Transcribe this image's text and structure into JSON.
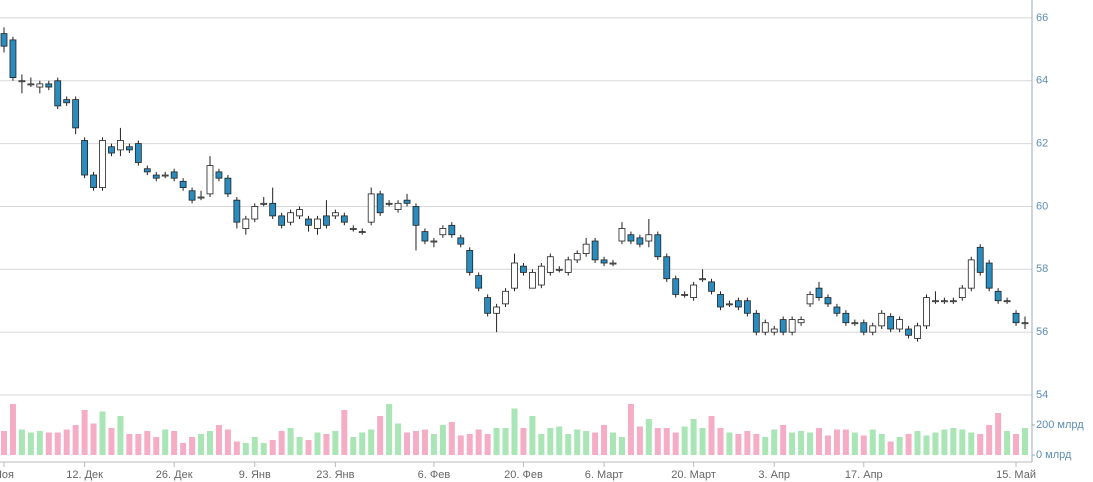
{
  "chart_data": {
    "type": "candlestick",
    "categories": [
      "Ноя",
      null,
      null,
      null,
      null,
      null,
      null,
      null,
      null,
      "12. Дек",
      null,
      null,
      null,
      null,
      null,
      null,
      null,
      null,
      null,
      "26. Дек",
      null,
      null,
      null,
      null,
      null,
      null,
      null,
      null,
      "9. Янв",
      null,
      null,
      null,
      null,
      null,
      null,
      null,
      null,
      "23. Янв",
      null,
      null,
      null,
      null,
      null,
      null,
      null,
      null,
      null,
      null,
      "6. Фев",
      null,
      null,
      null,
      null,
      null,
      null,
      null,
      null,
      null,
      "20. Фев",
      null,
      null,
      null,
      null,
      null,
      null,
      null,
      null,
      "6. Март",
      null,
      null,
      null,
      null,
      null,
      null,
      null,
      null,
      null,
      "20. Март",
      null,
      null,
      null,
      null,
      null,
      null,
      null,
      null,
      "3. Апр",
      null,
      null,
      null,
      null,
      null,
      null,
      null,
      null,
      null,
      "17. Апр",
      null,
      null,
      null,
      null,
      null,
      null,
      null,
      null,
      null,
      null,
      null,
      null,
      null,
      null,
      null,
      null,
      "15. Май",
      null
    ],
    "open": [
      65.5,
      65.3,
      64.0,
      63.9,
      63.8,
      63.9,
      64.0,
      63.4,
      63.4,
      62.1,
      61.0,
      60.6,
      61.9,
      61.8,
      61.9,
      62.0,
      61.2,
      61.0,
      61.0,
      61.1,
      60.8,
      60.5,
      60.3,
      60.4,
      61.1,
      60.9,
      60.2,
      59.3,
      59.6,
      60.1,
      60.1,
      59.7,
      59.5,
      59.7,
      59.6,
      59.3,
      59.7,
      59.7,
      59.7,
      59.3,
      59.2,
      59.5,
      60.4,
      60.1,
      59.9,
      60.2,
      60.0,
      59.2,
      58.9,
      59.1,
      59.4,
      59.0,
      58.6,
      57.8,
      57.1,
      56.6,
      56.9,
      57.4,
      58.1,
      57.4,
      57.5,
      57.9,
      58.0,
      57.9,
      58.3,
      58.5,
      58.9,
      58.3,
      58.2,
      58.9,
      59.1,
      59.0,
      58.9,
      59.1,
      58.4,
      57.7,
      57.2,
      57.1,
      57.7,
      57.6,
      57.2,
      56.9,
      57.0,
      57.0,
      56.6,
      56.0,
      56.0,
      56.4,
      56.0,
      56.3,
      56.9,
      57.4,
      57.1,
      56.8,
      56.6,
      56.3,
      56.3,
      56.0,
      56.2,
      56.5,
      56.1,
      56.1,
      55.8,
      56.2,
      57.0,
      57.0,
      57.0,
      57.1,
      57.4,
      58.7,
      58.2,
      57.3,
      57.0,
      56.6,
      56.3
    ],
    "high": [
      65.7,
      65.4,
      64.2,
      64.1,
      64.0,
      64.0,
      64.1,
      63.5,
      63.5,
      62.2,
      61.1,
      62.2,
      62.0,
      62.5,
      62.0,
      62.1,
      61.3,
      61.1,
      61.1,
      61.2,
      60.9,
      60.6,
      60.5,
      61.6,
      61.2,
      61.0,
      60.3,
      59.7,
      60.1,
      60.3,
      60.6,
      59.8,
      59.9,
      60.0,
      59.7,
      59.7,
      60.2,
      59.9,
      59.8,
      59.4,
      59.3,
      60.6,
      60.5,
      60.2,
      60.2,
      60.4,
      60.1,
      59.3,
      59.0,
      59.4,
      59.5,
      59.1,
      58.7,
      57.9,
      57.2,
      56.9,
      57.4,
      58.5,
      58.2,
      58.0,
      58.2,
      58.5,
      58.1,
      58.4,
      58.6,
      59.0,
      59.0,
      58.4,
      58.3,
      59.5,
      59.2,
      59.1,
      59.6,
      59.2,
      58.5,
      57.8,
      57.3,
      57.6,
      58.0,
      57.7,
      57.3,
      57.0,
      57.1,
      57.1,
      56.7,
      56.4,
      56.2,
      56.5,
      56.5,
      56.5,
      57.3,
      57.6,
      57.2,
      56.9,
      56.7,
      56.4,
      56.4,
      56.3,
      56.7,
      56.6,
      56.5,
      56.2,
      56.3,
      57.2,
      57.3,
      57.1,
      57.1,
      57.5,
      58.4,
      58.8,
      58.3,
      57.4,
      57.1,
      56.7,
      56.5
    ],
    "low": [
      64.9,
      64.0,
      63.6,
      63.8,
      63.6,
      63.7,
      63.1,
      63.2,
      62.3,
      60.9,
      60.5,
      60.5,
      61.6,
      61.6,
      61.7,
      61.3,
      61.0,
      60.8,
      60.9,
      60.8,
      60.5,
      60.1,
      60.2,
      60.3,
      60.8,
      60.3,
      59.3,
      59.1,
      59.5,
      60.0,
      59.6,
      59.3,
      59.4,
      59.6,
      59.2,
      59.1,
      59.3,
      59.6,
      59.4,
      59.2,
      59.1,
      59.4,
      59.7,
      60.0,
      59.8,
      60.0,
      58.6,
      58.8,
      58.7,
      59.0,
      59.0,
      58.7,
      57.8,
      57.3,
      56.5,
      56.0,
      56.8,
      57.3,
      57.8,
      57.4,
      57.4,
      57.8,
      57.9,
      57.8,
      58.2,
      58.4,
      58.2,
      58.1,
      58.1,
      58.8,
      58.8,
      58.7,
      58.7,
      58.3,
      57.6,
      57.1,
      57.1,
      57.0,
      57.6,
      57.2,
      56.7,
      56.8,
      56.7,
      56.5,
      55.9,
      55.9,
      55.9,
      55.9,
      55.9,
      56.2,
      56.8,
      57.0,
      56.8,
      56.5,
      56.2,
      56.2,
      55.9,
      55.9,
      56.1,
      56.0,
      56.0,
      55.8,
      55.7,
      56.1,
      56.9,
      56.9,
      56.9,
      57.0,
      57.3,
      57.8,
      57.3,
      56.9,
      56.9,
      56.2,
      56.1
    ],
    "close": [
      65.1,
      64.1,
      64.0,
      63.9,
      63.9,
      63.8,
      63.2,
      63.3,
      62.5,
      61.0,
      60.6,
      62.1,
      61.7,
      62.1,
      61.8,
      61.4,
      61.1,
      60.9,
      61.0,
      60.9,
      60.6,
      60.2,
      60.3,
      61.3,
      60.9,
      60.4,
      59.5,
      59.6,
      60.0,
      60.1,
      59.7,
      59.4,
      59.8,
      59.9,
      59.4,
      59.6,
      59.4,
      59.8,
      59.5,
      59.3,
      59.2,
      60.4,
      59.8,
      60.1,
      60.1,
      60.1,
      59.4,
      58.9,
      58.9,
      59.3,
      59.1,
      58.8,
      57.9,
      57.4,
      56.6,
      56.8,
      57.3,
      58.2,
      57.9,
      57.9,
      58.1,
      58.4,
      58.0,
      58.3,
      58.5,
      58.8,
      58.3,
      58.2,
      58.2,
      59.3,
      58.9,
      58.8,
      59.1,
      58.4,
      57.7,
      57.2,
      57.2,
      57.5,
      57.7,
      57.3,
      56.8,
      56.9,
      56.8,
      56.6,
      56.0,
      56.3,
      56.1,
      56.0,
      56.4,
      56.4,
      57.2,
      57.1,
      56.9,
      56.6,
      56.3,
      56.3,
      56.0,
      56.2,
      56.6,
      56.1,
      56.4,
      55.9,
      56.2,
      57.1,
      57.0,
      57.0,
      57.0,
      57.4,
      58.3,
      57.9,
      57.4,
      57.0,
      57.0,
      56.3,
      56.3
    ],
    "volume": [
      160,
      340,
      170,
      150,
      160,
      150,
      150,
      170,
      200,
      300,
      210,
      290,
      180,
      260,
      140,
      140,
      160,
      120,
      170,
      160,
      80,
      120,
      140,
      160,
      200,
      170,
      90,
      80,
      120,
      80,
      100,
      160,
      180,
      120,
      100,
      150,
      140,
      160,
      300,
      120,
      150,
      170,
      260,
      340,
      210,
      150,
      160,
      170,
      140,
      200,
      220,
      130,
      140,
      170,
      140,
      180,
      180,
      310,
      180,
      260,
      140,
      180,
      190,
      140,
      170,
      160,
      150,
      200,
      150,
      120,
      340,
      190,
      240,
      180,
      180,
      150,
      190,
      240,
      180,
      260,
      180,
      150,
      140,
      160,
      140,
      120,
      170,
      200,
      150,
      160,
      150,
      180,
      130,
      170,
      170,
      150,
      130,
      170,
      140,
      90,
      120,
      140,
      160,
      130,
      150,
      170,
      180,
      170,
      150,
      140,
      200,
      280,
      160,
      140,
      180
    ],
    "ylim": [
      54,
      66.57
    ],
    "yticks": [
      54,
      56,
      58,
      60,
      62,
      64,
      66
    ],
    "y2lim": [
      0,
      400
    ],
    "y2ticks": [
      {
        "value": 200,
        "label": "200 млрд"
      },
      {
        "value": 0,
        "label": "0 млрд"
      }
    ],
    "grid": true,
    "up_color": "#ffffff",
    "down_color": "#2a8cbe",
    "volume_up_color": "#a9e5b5",
    "volume_down_color": "#f5adc6"
  }
}
